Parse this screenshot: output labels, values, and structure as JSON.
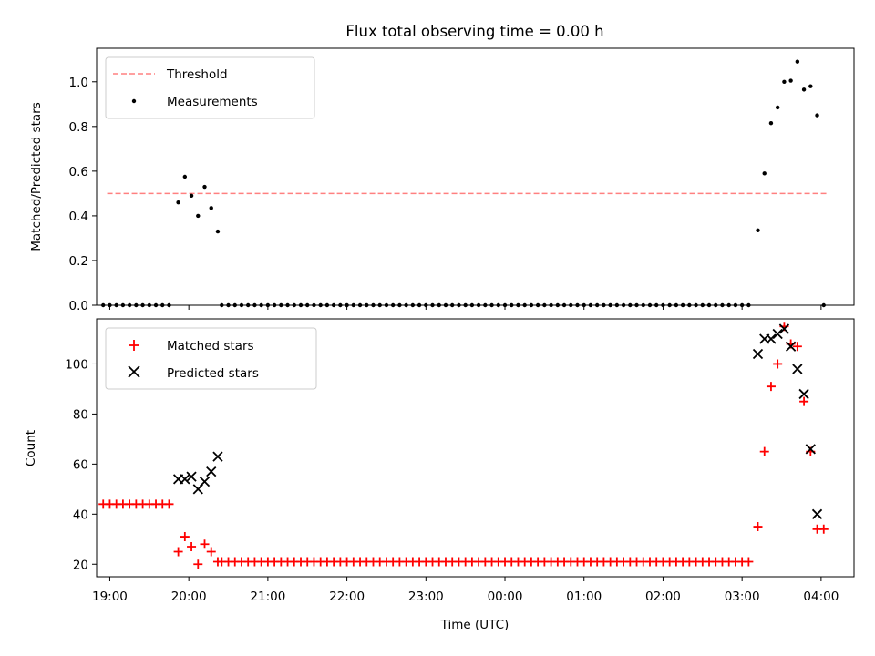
{
  "title": "Flux total observing time = 0.00 h",
  "chart_data": [
    {
      "type": "scatter",
      "panel": "top",
      "ylabel": "Matched/Predicted stars",
      "ylim": [
        0,
        1.15
      ],
      "yticks": [
        "0.0",
        "0.2",
        "0.4",
        "0.6",
        "0.8",
        "1.0"
      ],
      "xlim": [
        "18:50",
        "04:25"
      ],
      "threshold": {
        "name": "Threshold",
        "value": 0.5,
        "x_start": "18:58",
        "x_end": "04:05",
        "color": "#ff8080"
      },
      "series": [
        {
          "name": "Measurements",
          "color": "#000000",
          "points": [
            [
              "18:55",
              0
            ],
            [
              "19:00",
              0
            ],
            [
              "19:05",
              0
            ],
            [
              "19:10",
              0
            ],
            [
              "19:15",
              0
            ],
            [
              "19:20",
              0
            ],
            [
              "19:25",
              0
            ],
            [
              "19:30",
              0
            ],
            [
              "19:35",
              0
            ],
            [
              "19:40",
              0
            ],
            [
              "19:45",
              0
            ],
            [
              "19:52",
              0.46
            ],
            [
              "19:57",
              0.575
            ],
            [
              "20:02",
              0.49
            ],
            [
              "20:07",
              0.4
            ],
            [
              "20:12",
              0.53
            ],
            [
              "20:17",
              0.435
            ],
            [
              "20:22",
              0.33
            ],
            [
              "20:25",
              0
            ],
            [
              "20:30",
              0
            ],
            [
              "20:35",
              0
            ],
            [
              "20:40",
              0
            ],
            [
              "20:45",
              0
            ],
            [
              "20:50",
              0
            ],
            [
              "20:55",
              0
            ],
            [
              "21:00",
              0
            ],
            [
              "21:05",
              0
            ],
            [
              "21:10",
              0
            ],
            [
              "21:15",
              0
            ],
            [
              "21:20",
              0
            ],
            [
              "21:25",
              0
            ],
            [
              "21:30",
              0
            ],
            [
              "21:35",
              0
            ],
            [
              "21:40",
              0
            ],
            [
              "21:45",
              0
            ],
            [
              "21:50",
              0
            ],
            [
              "21:55",
              0
            ],
            [
              "22:00",
              0
            ],
            [
              "22:05",
              0
            ],
            [
              "22:10",
              0
            ],
            [
              "22:15",
              0
            ],
            [
              "22:20",
              0
            ],
            [
              "22:25",
              0
            ],
            [
              "22:30",
              0
            ],
            [
              "22:35",
              0
            ],
            [
              "22:40",
              0
            ],
            [
              "22:45",
              0
            ],
            [
              "22:50",
              0
            ],
            [
              "22:55",
              0
            ],
            [
              "23:00",
              0
            ],
            [
              "23:05",
              0
            ],
            [
              "23:10",
              0
            ],
            [
              "23:15",
              0
            ],
            [
              "23:20",
              0
            ],
            [
              "23:25",
              0
            ],
            [
              "23:30",
              0
            ],
            [
              "23:35",
              0
            ],
            [
              "23:40",
              0
            ],
            [
              "23:45",
              0
            ],
            [
              "23:50",
              0
            ],
            [
              "23:55",
              0
            ],
            [
              "00:00",
              0
            ],
            [
              "00:05",
              0
            ],
            [
              "00:10",
              0
            ],
            [
              "00:15",
              0
            ],
            [
              "00:20",
              0
            ],
            [
              "00:25",
              0
            ],
            [
              "00:30",
              0
            ],
            [
              "00:35",
              0
            ],
            [
              "00:40",
              0
            ],
            [
              "00:45",
              0
            ],
            [
              "00:50",
              0
            ],
            [
              "00:55",
              0
            ],
            [
              "01:00",
              0
            ],
            [
              "01:05",
              0
            ],
            [
              "01:10",
              0
            ],
            [
              "01:15",
              0
            ],
            [
              "01:20",
              0
            ],
            [
              "01:25",
              0
            ],
            [
              "01:30",
              0
            ],
            [
              "01:35",
              0
            ],
            [
              "01:40",
              0
            ],
            [
              "01:45",
              0
            ],
            [
              "01:50",
              0
            ],
            [
              "01:55",
              0
            ],
            [
              "02:00",
              0
            ],
            [
              "02:05",
              0
            ],
            [
              "02:10",
              0
            ],
            [
              "02:15",
              0
            ],
            [
              "02:20",
              0
            ],
            [
              "02:25",
              0
            ],
            [
              "02:30",
              0
            ],
            [
              "02:35",
              0
            ],
            [
              "02:40",
              0
            ],
            [
              "02:45",
              0
            ],
            [
              "02:50",
              0
            ],
            [
              "02:55",
              0
            ],
            [
              "03:00",
              0
            ],
            [
              "03:05",
              0
            ],
            [
              "03:12",
              0.335
            ],
            [
              "03:17",
              0.59
            ],
            [
              "03:22",
              0.815
            ],
            [
              "03:27",
              0.885
            ],
            [
              "03:32",
              1.0
            ],
            [
              "03:37",
              1.005
            ],
            [
              "03:42",
              1.09
            ],
            [
              "03:47",
              0.965
            ],
            [
              "03:52",
              0.98
            ],
            [
              "03:57",
              0.85
            ],
            [
              "04:02",
              0
            ]
          ]
        }
      ],
      "legend": {
        "position": "upper-left",
        "entries": [
          "Threshold",
          "Measurements"
        ]
      }
    },
    {
      "type": "scatter",
      "panel": "bottom",
      "xlabel": "Time (UTC)",
      "ylabel": "Count",
      "ylim": [
        15,
        118
      ],
      "yticks": [
        "20",
        "40",
        "60",
        "80",
        "100"
      ],
      "xlim": [
        "18:50",
        "04:25"
      ],
      "xticks": [
        "19:00",
        "20:00",
        "21:00",
        "22:00",
        "23:00",
        "00:00",
        "01:00",
        "02:00",
        "03:00",
        "04:00"
      ],
      "series": [
        {
          "name": "Matched stars",
          "marker": "plus",
          "color": "#ff0000",
          "points": [
            [
              "18:55",
              44
            ],
            [
              "19:00",
              44
            ],
            [
              "19:05",
              44
            ],
            [
              "19:10",
              44
            ],
            [
              "19:15",
              44
            ],
            [
              "19:20",
              44
            ],
            [
              "19:25",
              44
            ],
            [
              "19:30",
              44
            ],
            [
              "19:35",
              44
            ],
            [
              "19:40",
              44
            ],
            [
              "19:45",
              44
            ],
            [
              "19:52",
              25
            ],
            [
              "19:57",
              31
            ],
            [
              "20:02",
              27
            ],
            [
              "20:07",
              20
            ],
            [
              "20:12",
              28
            ],
            [
              "20:17",
              25
            ],
            [
              "20:22",
              21
            ],
            [
              "20:25",
              21
            ],
            [
              "20:30",
              21
            ],
            [
              "20:35",
              21
            ],
            [
              "20:40",
              21
            ],
            [
              "20:45",
              21
            ],
            [
              "20:50",
              21
            ],
            [
              "20:55",
              21
            ],
            [
              "21:00",
              21
            ],
            [
              "21:05",
              21
            ],
            [
              "21:10",
              21
            ],
            [
              "21:15",
              21
            ],
            [
              "21:20",
              21
            ],
            [
              "21:25",
              21
            ],
            [
              "21:30",
              21
            ],
            [
              "21:35",
              21
            ],
            [
              "21:40",
              21
            ],
            [
              "21:45",
              21
            ],
            [
              "21:50",
              21
            ],
            [
              "21:55",
              21
            ],
            [
              "22:00",
              21
            ],
            [
              "22:05",
              21
            ],
            [
              "22:10",
              21
            ],
            [
              "22:15",
              21
            ],
            [
              "22:20",
              21
            ],
            [
              "22:25",
              21
            ],
            [
              "22:30",
              21
            ],
            [
              "22:35",
              21
            ],
            [
              "22:40",
              21
            ],
            [
              "22:45",
              21
            ],
            [
              "22:50",
              21
            ],
            [
              "22:55",
              21
            ],
            [
              "23:00",
              21
            ],
            [
              "23:05",
              21
            ],
            [
              "23:10",
              21
            ],
            [
              "23:15",
              21
            ],
            [
              "23:20",
              21
            ],
            [
              "23:25",
              21
            ],
            [
              "23:30",
              21
            ],
            [
              "23:35",
              21
            ],
            [
              "23:40",
              21
            ],
            [
              "23:45",
              21
            ],
            [
              "23:50",
              21
            ],
            [
              "23:55",
              21
            ],
            [
              "00:00",
              21
            ],
            [
              "00:05",
              21
            ],
            [
              "00:10",
              21
            ],
            [
              "00:15",
              21
            ],
            [
              "00:20",
              21
            ],
            [
              "00:25",
              21
            ],
            [
              "00:30",
              21
            ],
            [
              "00:35",
              21
            ],
            [
              "00:40",
              21
            ],
            [
              "00:45",
              21
            ],
            [
              "00:50",
              21
            ],
            [
              "00:55",
              21
            ],
            [
              "01:00",
              21
            ],
            [
              "01:05",
              21
            ],
            [
              "01:10",
              21
            ],
            [
              "01:15",
              21
            ],
            [
              "01:20",
              21
            ],
            [
              "01:25",
              21
            ],
            [
              "01:30",
              21
            ],
            [
              "01:35",
              21
            ],
            [
              "01:40",
              21
            ],
            [
              "01:45",
              21
            ],
            [
              "01:50",
              21
            ],
            [
              "01:55",
              21
            ],
            [
              "02:00",
              21
            ],
            [
              "02:05",
              21
            ],
            [
              "02:10",
              21
            ],
            [
              "02:15",
              21
            ],
            [
              "02:20",
              21
            ],
            [
              "02:25",
              21
            ],
            [
              "02:30",
              21
            ],
            [
              "02:35",
              21
            ],
            [
              "02:40",
              21
            ],
            [
              "02:45",
              21
            ],
            [
              "02:50",
              21
            ],
            [
              "02:55",
              21
            ],
            [
              "03:00",
              21
            ],
            [
              "03:05",
              21
            ],
            [
              "03:12",
              35
            ],
            [
              "03:17",
              65
            ],
            [
              "03:22",
              91
            ],
            [
              "03:27",
              100
            ],
            [
              "03:32",
              115
            ],
            [
              "03:37",
              108
            ],
            [
              "03:42",
              107
            ],
            [
              "03:47",
              85
            ],
            [
              "03:52",
              65
            ],
            [
              "03:57",
              34
            ],
            [
              "04:02",
              34
            ]
          ]
        },
        {
          "name": "Predicted stars",
          "marker": "x",
          "color": "#000000",
          "points": [
            [
              "19:52",
              54
            ],
            [
              "19:57",
              54
            ],
            [
              "20:02",
              55
            ],
            [
              "20:07",
              50
            ],
            [
              "20:12",
              53
            ],
            [
              "20:17",
              57
            ],
            [
              "20:22",
              63
            ],
            [
              "03:12",
              104
            ],
            [
              "03:17",
              110
            ],
            [
              "03:22",
              110
            ],
            [
              "03:27",
              112
            ],
            [
              "03:32",
              114
            ],
            [
              "03:37",
              107
            ],
            [
              "03:42",
              98
            ],
            [
              "03:47",
              88
            ],
            [
              "03:52",
              66
            ],
            [
              "03:57",
              40
            ]
          ]
        }
      ],
      "legend": {
        "position": "upper-left",
        "entries": [
          "Matched stars",
          "Predicted stars"
        ]
      }
    }
  ]
}
